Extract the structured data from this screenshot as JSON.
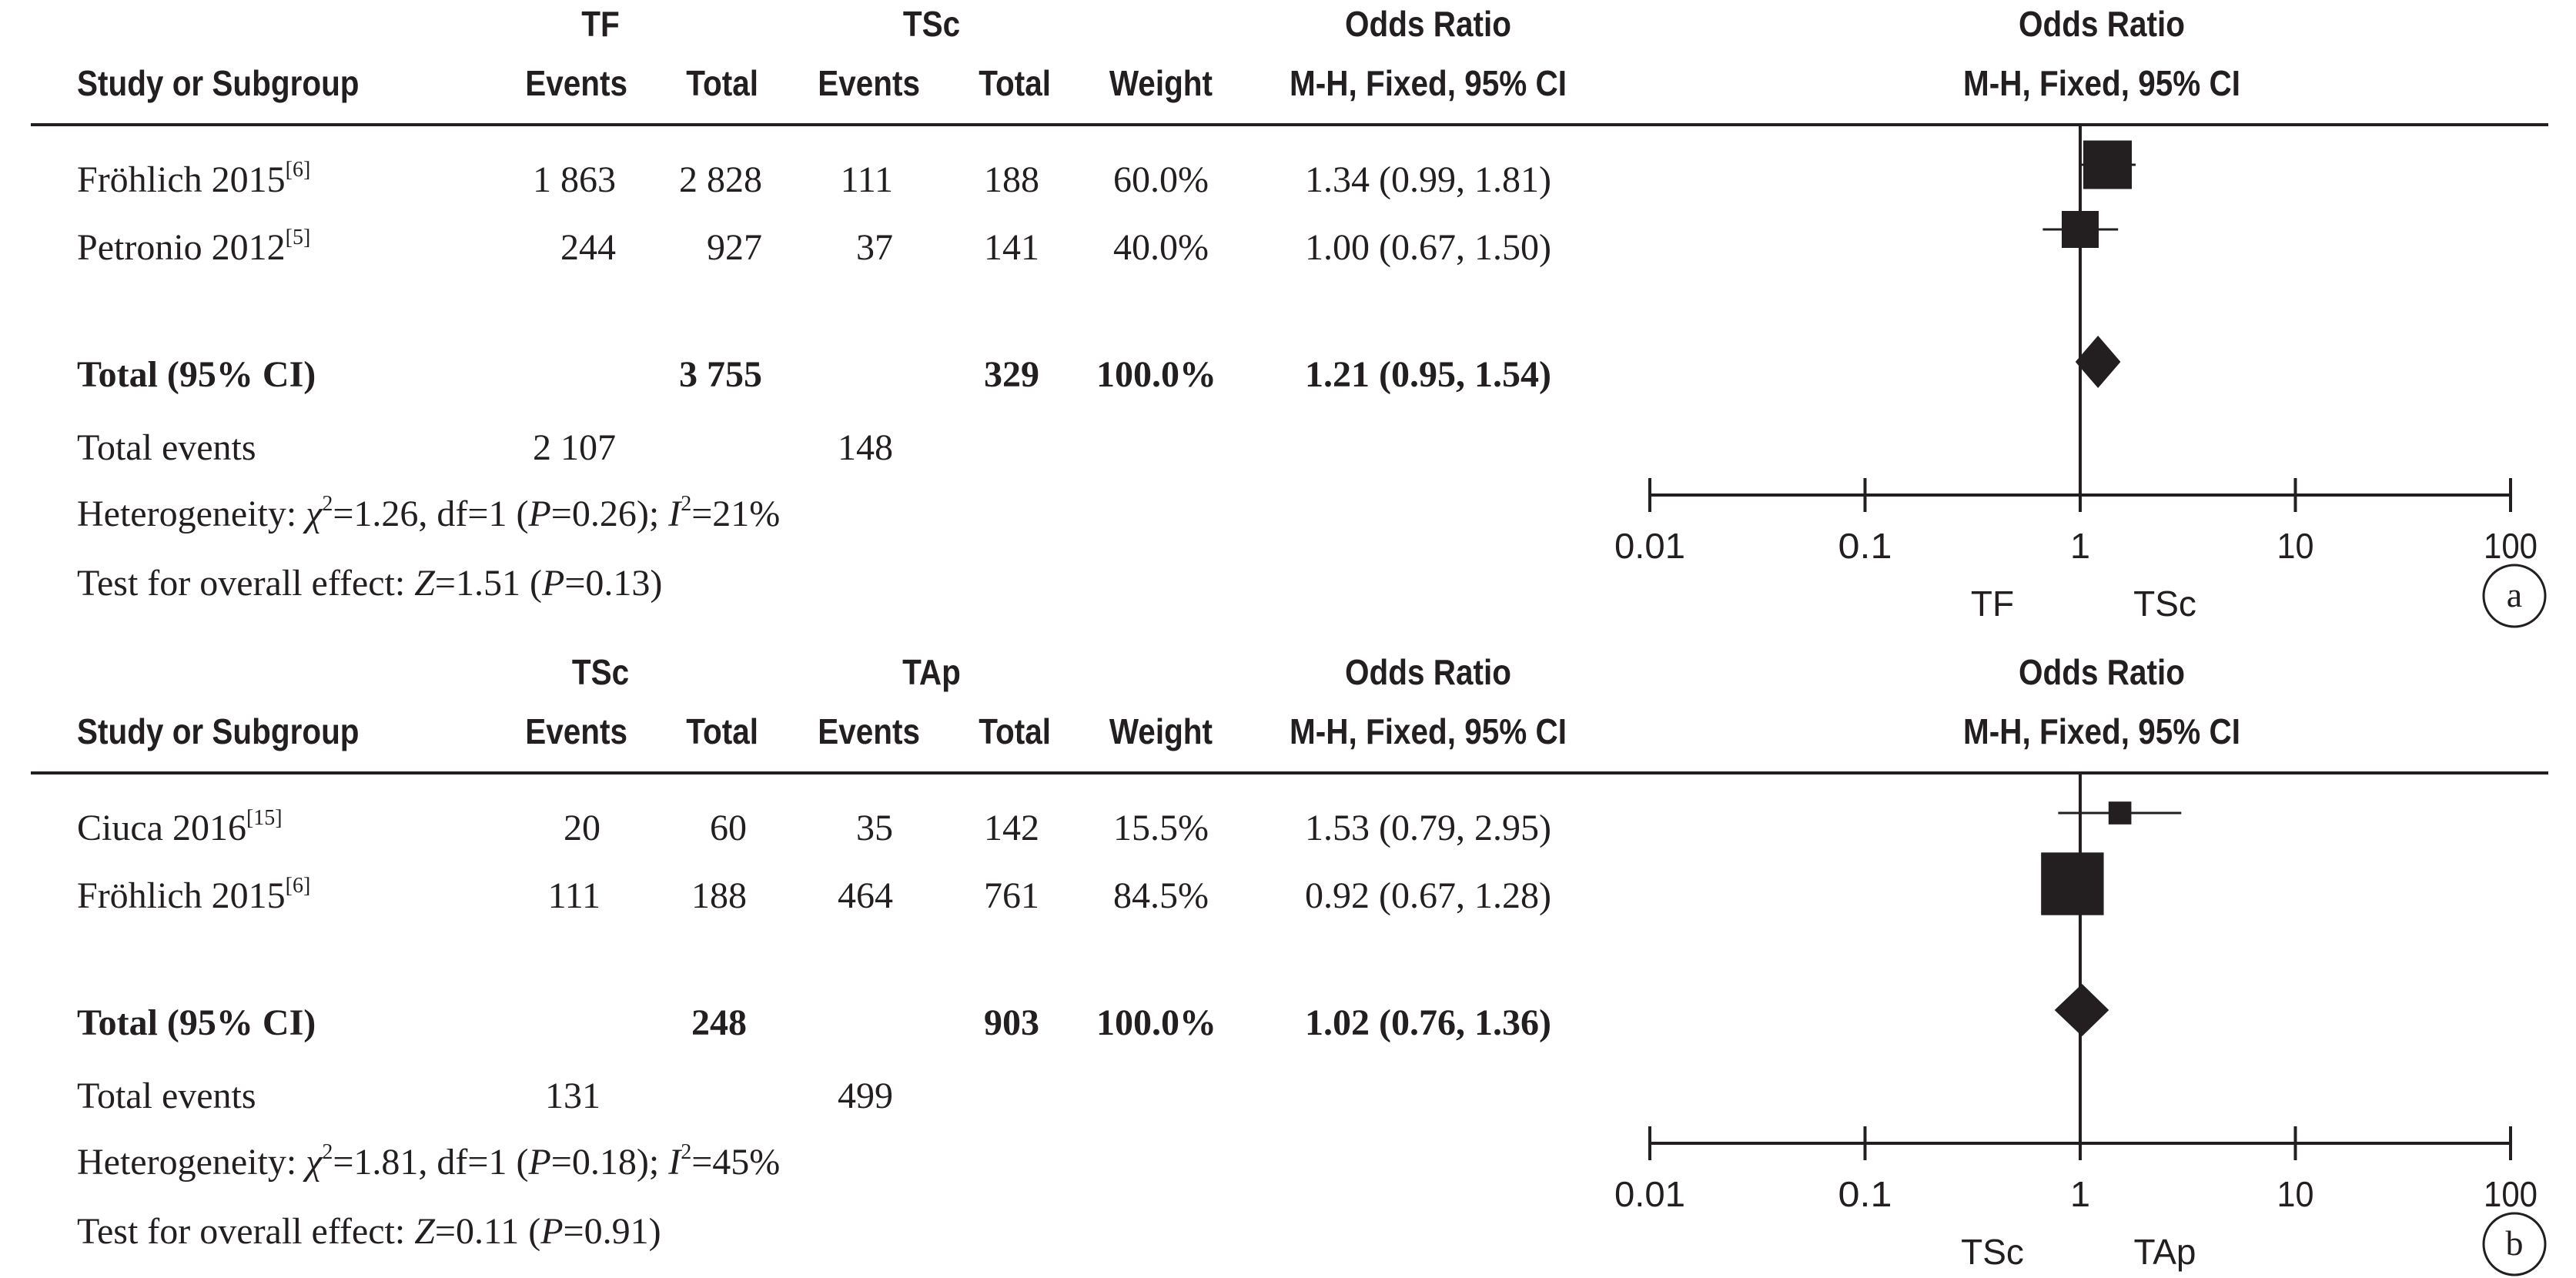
{
  "chart_data": [
    {
      "type": "forest",
      "panel_label": "a",
      "group1": "TF",
      "group2": "TSc",
      "col_study": "Study or Subgroup",
      "col_events": "Events",
      "col_total": "Total",
      "col_weight": "Weight",
      "or_title": "Odds Ratio",
      "or_method": "M-H, Fixed, 95% CI",
      "studies": [
        {
          "name": "Fröhlich 2015",
          "ref": "[6]",
          "g1_events": "1 863",
          "g1_total": "2 828",
          "g2_events": "111",
          "g2_total": "188",
          "weight": "60.0%",
          "or_text": "1.34 (0.99, 1.81)",
          "or": 1.34,
          "ci_low": 0.99,
          "ci_high": 1.81,
          "weight_pct": 60.0
        },
        {
          "name": "Petronio 2012",
          "ref": "[5]",
          "g1_events": "244",
          "g1_total": "927",
          "g2_events": "37",
          "g2_total": "141",
          "weight": "40.0%",
          "or_text": "1.00 (0.67, 1.50)",
          "or": 1.0,
          "ci_low": 0.67,
          "ci_high": 1.5,
          "weight_pct": 40.0
        }
      ],
      "total": {
        "label": "Total (95% CI)",
        "g1_total": "3 755",
        "g2_total": "329",
        "weight": "100.0%",
        "or_text": "1.21 (0.95, 1.54)",
        "or": 1.21,
        "ci_low": 0.95,
        "ci_high": 1.54
      },
      "total_events": {
        "label": "Total events",
        "g1": "2 107",
        "g2": "148"
      },
      "heterogeneity": {
        "label": "Heterogeneity:",
        "chi2": "1.26",
        "df": "1",
        "p": "0.26",
        "i2": "21%"
      },
      "overall_effect": {
        "label": "Test for overall effect:",
        "z": "1.51",
        "p": "0.13"
      },
      "x_scale": "log",
      "x_ticks": [
        "0.01",
        "0.1",
        "1",
        "10",
        "100"
      ],
      "xlim": [
        0.01,
        100
      ],
      "favours_left": "TF",
      "favours_right": "TSc"
    },
    {
      "type": "forest",
      "panel_label": "b",
      "group1": "TSc",
      "group2": "TAp",
      "col_study": "Study or Subgroup",
      "col_events": "Events",
      "col_total": "Total",
      "col_weight": "Weight",
      "or_title": "Odds Ratio",
      "or_method": "M-H, Fixed, 95% CI",
      "studies": [
        {
          "name": "Ciuca 2016",
          "ref": "[15]",
          "g1_events": "20",
          "g1_total": "60",
          "g2_events": "35",
          "g2_total": "142",
          "weight": "15.5%",
          "or_text": "1.53 (0.79, 2.95)",
          "or": 1.53,
          "ci_low": 0.79,
          "ci_high": 2.95,
          "weight_pct": 15.5
        },
        {
          "name": "Fröhlich 2015",
          "ref": "[6]",
          "g1_events": "111",
          "g1_total": "188",
          "g2_events": "464",
          "g2_total": "761",
          "weight": "84.5%",
          "or_text": "0.92 (0.67, 1.28)",
          "or": 0.92,
          "ci_low": 0.67,
          "ci_high": 1.28,
          "weight_pct": 84.5
        }
      ],
      "total": {
        "label": "Total (95% CI)",
        "g1_total": "248",
        "g2_total": "903",
        "weight": "100.0%",
        "or_text": "1.02 (0.76, 1.36)",
        "or": 1.02,
        "ci_low": 0.76,
        "ci_high": 1.36
      },
      "total_events": {
        "label": "Total events",
        "g1": "131",
        "g2": "499"
      },
      "heterogeneity": {
        "label": "Heterogeneity:",
        "chi2": "1.81",
        "df": "1",
        "p": "0.18",
        "i2": "45%"
      },
      "overall_effect": {
        "label": "Test for overall effect:",
        "z": "0.11",
        "p": "0.91"
      },
      "x_scale": "log",
      "x_ticks": [
        "0.01",
        "0.1",
        "1",
        "10",
        "100"
      ],
      "xlim": [
        0.01,
        100
      ],
      "favours_left": "TSc",
      "favours_right": "TAp"
    }
  ]
}
